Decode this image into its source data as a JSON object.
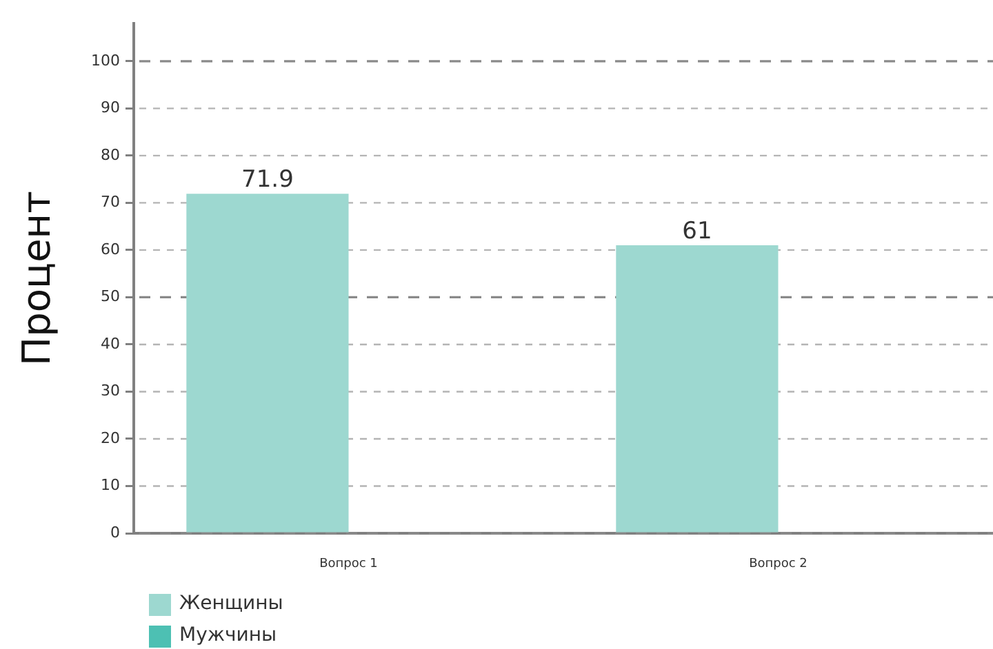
{
  "chart_data": {
    "type": "bar",
    "ylabel": "Процент",
    "categories": [
      "Вопрос 1",
      "Вопрос 2"
    ],
    "series": [
      {
        "name": "Женщины",
        "color": "#9dd8d0",
        "values": [
          71.9,
          61
        ]
      },
      {
        "name": "Мужчины",
        "color": "#4dc0b3",
        "values": [
          null,
          null
        ]
      }
    ],
    "ylim": [
      0,
      108
    ],
    "yticks": [
      0,
      10,
      20,
      30,
      40,
      50,
      60,
      70,
      80,
      90,
      100
    ],
    "grid": "y",
    "legend": "bottom left",
    "data_labels": true
  }
}
